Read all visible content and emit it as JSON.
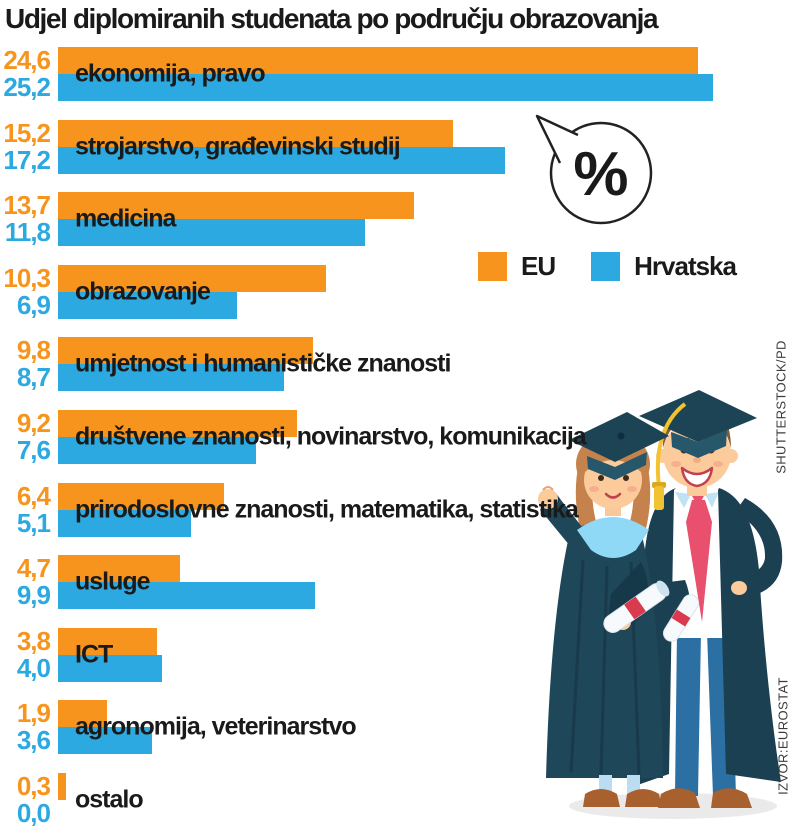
{
  "title": "Udjel diplomiranih studenata po području obrazovanja",
  "bubble": {
    "symbol": "%"
  },
  "legend": [
    {
      "label": "EU",
      "color": "#F7941D"
    },
    {
      "label": "Hrvatska",
      "color": "#2BA9E0"
    }
  ],
  "credits": {
    "right_top": "SHUTTERSTOCK/PD",
    "right_bottom": "IZVOR:EUROSTAT"
  },
  "chart_data": {
    "type": "bar",
    "orientation": "horizontal",
    "title": "Udjel diplomiranih studenata po području obrazovanja",
    "unit": "%",
    "xlabel": "",
    "ylabel": "",
    "xlim": [
      0,
      26
    ],
    "grid": false,
    "axes_hidden": true,
    "legend_position": "right-middle",
    "value_label_position": "left-of-bars",
    "categories": [
      "ekonomija, pravo",
      "strojarstvo, građevinski studij",
      "medicina",
      "obrazovanje",
      "umjetnost i humanističke znanosti",
      "društvene znanosti, novinarstvo, komunikacija",
      "prirodoslovne znanosti, matematika, statistika",
      "usluge",
      "ICT",
      "agronomija, veterinarstvo",
      "ostalo"
    ],
    "series": [
      {
        "name": "EU",
        "color": "#F7941D",
        "values": [
          24.6,
          15.2,
          13.7,
          10.3,
          9.8,
          9.2,
          6.4,
          4.7,
          3.8,
          1.9,
          0.3
        ],
        "labels": [
          "24,6",
          "15,2",
          "13,7",
          "10,3",
          "9,8",
          "9,2",
          "6,4",
          "4,7",
          "3,8",
          "1,9",
          "0,3"
        ]
      },
      {
        "name": "Hrvatska",
        "color": "#2BA9E0",
        "values": [
          25.2,
          17.2,
          11.8,
          6.9,
          8.7,
          7.6,
          5.1,
          9.9,
          4.0,
          3.6,
          0.0
        ],
        "labels": [
          "25,2",
          "17,2",
          "11,8",
          "6,9",
          "8,7",
          "7,6",
          "5,1",
          "9,9",
          "4,0",
          "3,6",
          "0,0"
        ]
      }
    ]
  }
}
